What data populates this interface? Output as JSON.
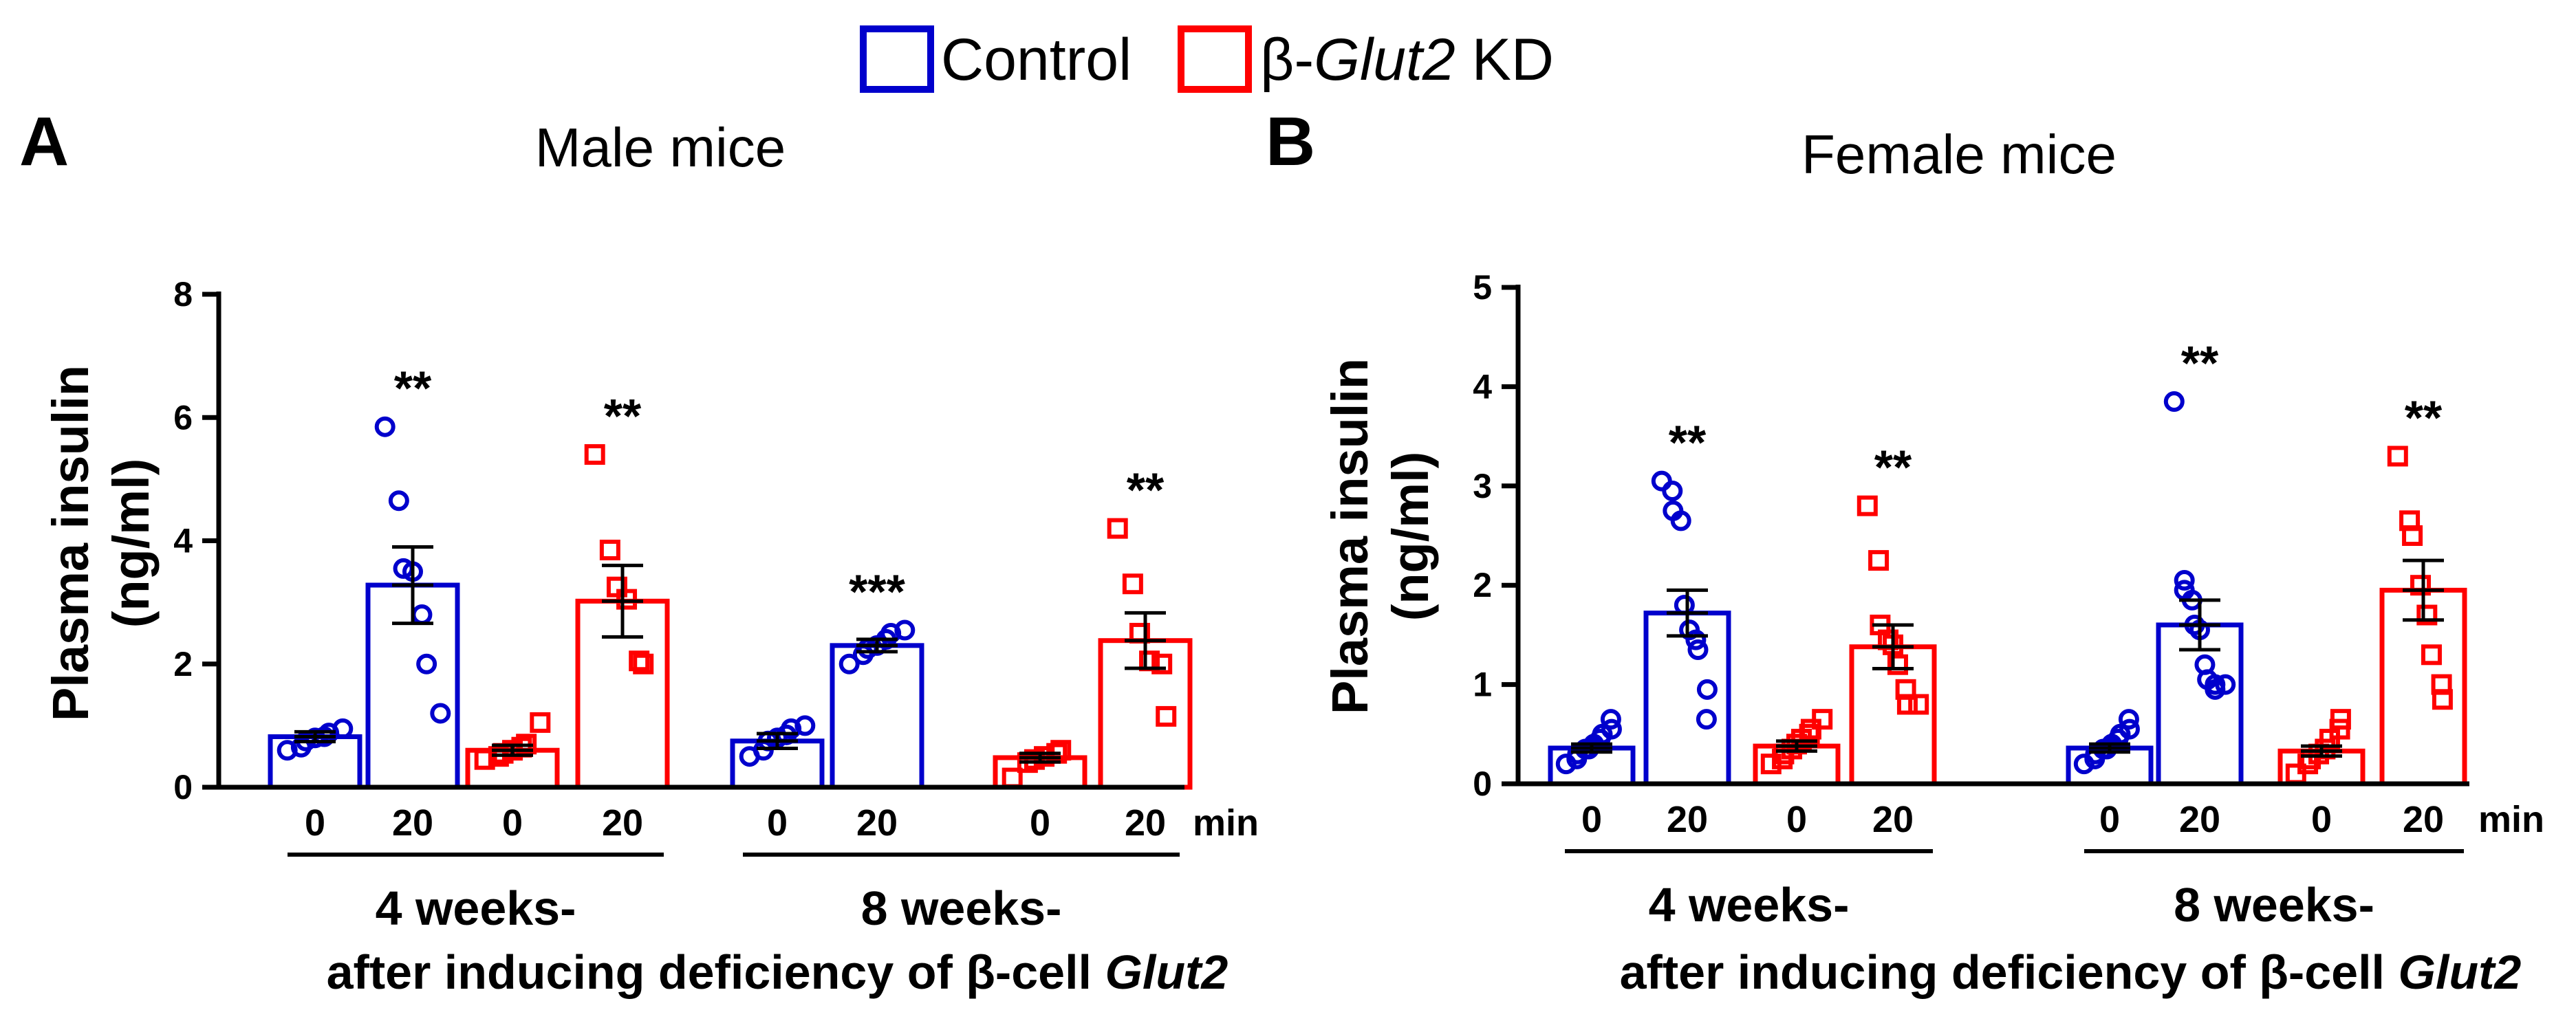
{
  "legend": {
    "items": [
      {
        "label": "Control",
        "color": "#0000cc"
      },
      {
        "prefix": "β-",
        "italic": "Glut2",
        "suffix": " KD",
        "color": "#ff0000"
      }
    ]
  },
  "labels": {
    "time_unit": "min",
    "week_labels": [
      "4 weeks-",
      "8 weeks-"
    ],
    "caption_main": "after inducing deficiency of β-cell ",
    "caption_italic": "Glut2"
  },
  "chart_data": [
    {
      "panel_letter": "A",
      "type": "bar",
      "title": "Male mice",
      "ylabel_lines": [
        "Plasma insulin",
        "(ng/ml)"
      ],
      "ylim": [
        0,
        8
      ],
      "yticks": [
        0,
        2,
        4,
        6,
        8
      ],
      "categories": [
        "0",
        "20",
        "0",
        "20",
        "0",
        "20",
        "0",
        "20"
      ],
      "group": [
        "Control",
        "β-Glut2 KD",
        "Control",
        "β-Glut2 KD",
        "Control",
        "β-Glut2 KD",
        "Control",
        "β-Glut2 KD"
      ],
      "series_index": [
        0,
        0,
        1,
        1,
        0,
        0,
        1,
        1
      ],
      "weeks": [
        4,
        4,
        4,
        4,
        8,
        8,
        8,
        8
      ],
      "values": [
        0.82,
        3.28,
        0.6,
        3.02,
        0.75,
        2.3,
        0.48,
        2.38
      ],
      "sem": [
        0.08,
        0.62,
        0.08,
        0.58,
        0.12,
        0.1,
        0.07,
        0.45
      ],
      "significance": [
        "",
        "**",
        "",
        "**",
        "",
        "***",
        "",
        "**"
      ],
      "points": [
        [
          0.6,
          0.65,
          0.75,
          0.8,
          0.82,
          0.88,
          0.95
        ],
        [
          5.85,
          4.65,
          3.55,
          3.5,
          2.8,
          2.0,
          1.2
        ],
        [
          0.45,
          0.5,
          0.55,
          0.6,
          0.65,
          0.7,
          1.05
        ],
        [
          5.4,
          3.85,
          3.25,
          3.05,
          2.05,
          2.0
        ],
        [
          0.5,
          0.6,
          0.75,
          0.8,
          0.85,
          0.95,
          1.0
        ],
        [
          2.0,
          2.15,
          2.25,
          2.3,
          2.4,
          2.5,
          2.55
        ],
        [
          0.15,
          0.4,
          0.45,
          0.5,
          0.55,
          0.6
        ],
        [
          4.2,
          3.3,
          2.5,
          2.05,
          2.0,
          1.15
        ]
      ]
    },
    {
      "panel_letter": "B",
      "type": "bar",
      "title": "Female mice",
      "ylabel_lines": [
        "Plasma insulin",
        "(ng/ml)"
      ],
      "ylim": [
        0,
        5
      ],
      "yticks": [
        0,
        1,
        2,
        3,
        4,
        5
      ],
      "categories": [
        "0",
        "20",
        "0",
        "20",
        "0",
        "20",
        "0",
        "20"
      ],
      "group": [
        "Control",
        "β-Glut2 KD",
        "Control",
        "β-Glut2 KD",
        "Control",
        "β-Glut2 KD",
        "Control",
        "β-Glut2 KD"
      ],
      "series_index": [
        0,
        0,
        1,
        1,
        0,
        0,
        1,
        1
      ],
      "weeks": [
        4,
        4,
        4,
        4,
        8,
        8,
        8,
        8
      ],
      "values": [
        0.36,
        1.72,
        0.38,
        1.38,
        0.36,
        1.6,
        0.33,
        1.95
      ],
      "sem": [
        0.04,
        0.23,
        0.05,
        0.22,
        0.04,
        0.25,
        0.05,
        0.3
      ],
      "significance": [
        "",
        "**",
        "",
        "**",
        "",
        "**",
        "",
        "**"
      ],
      "points": [
        [
          0.2,
          0.25,
          0.3,
          0.35,
          0.35,
          0.4,
          0.45,
          0.5,
          0.55,
          0.65
        ],
        [
          3.05,
          2.95,
          2.75,
          2.65,
          1.8,
          1.55,
          1.45,
          1.35,
          0.95,
          0.65
        ],
        [
          0.2,
          0.25,
          0.3,
          0.35,
          0.4,
          0.45,
          0.5,
          0.55,
          0.65
        ],
        [
          2.8,
          2.25,
          1.6,
          1.45,
          1.4,
          1.2,
          0.95,
          0.8,
          0.8
        ],
        [
          0.2,
          0.25,
          0.3,
          0.35,
          0.35,
          0.4,
          0.45,
          0.5,
          0.55,
          0.65
        ],
        [
          3.85,
          2.05,
          1.95,
          1.85,
          1.6,
          1.55,
          1.2,
          1.05,
          1.0,
          0.95,
          1.0
        ],
        [
          0.1,
          0.2,
          0.25,
          0.3,
          0.35,
          0.45,
          0.55,
          0.65
        ],
        [
          3.3,
          2.65,
          2.5,
          2.0,
          1.7,
          1.3,
          1.0,
          0.85
        ]
      ]
    }
  ]
}
